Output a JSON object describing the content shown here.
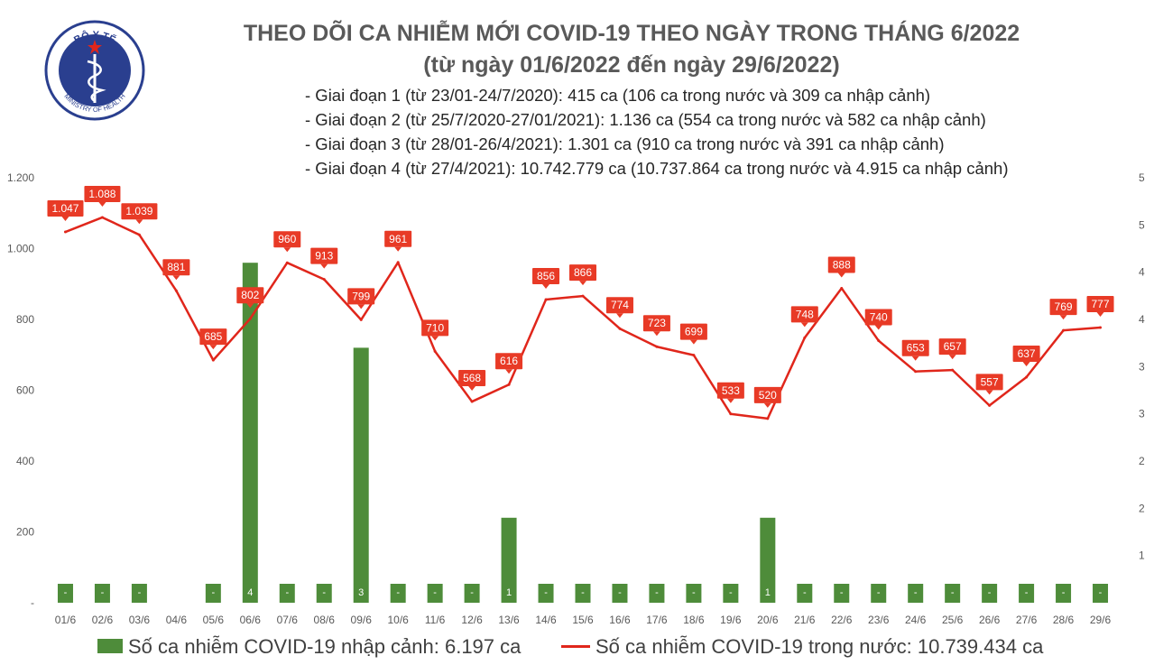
{
  "logo": {
    "top_text": "BỘ Y TẾ",
    "bottom_text": "MINISTRY OF HEALTH"
  },
  "title": {
    "line1": "THEO DÕI CA NHIỄM MỚI COVID-19 THEO NGÀY TRONG THÁNG 6/2022",
    "line2": "(từ ngày 01/6/2022 đến ngày 29/6/2022)"
  },
  "notes": [
    "- Giai đoạn 1 (từ 23/01-24/7/2020): 415 ca (106 ca trong nước và 309 ca nhập cảnh)",
    "- Giai đoạn 2 (từ 25/7/2020-27/01/2021): 1.136 ca (554 ca trong nước và 582 ca nhập cảnh)",
    "- Giai đoạn 3 (từ 28/01-26/4/2021): 1.301 ca (910 ca trong nước và 391 ca nhập cảnh)",
    "- Giai đoạn 4 (từ 27/4/2021): 10.742.779 ca (10.737.864 ca trong nước và 4.915 ca nhập cảnh)"
  ],
  "colors": {
    "bar": "#4e8c3a",
    "line": "#e0261b",
    "label_bg": "#e83a26",
    "axis_text": "#595959"
  },
  "legend": {
    "bar": "Số ca nhiễm COVID-19 nhập cảnh: 6.197 ca",
    "line": "Số ca nhiễm COVID-19 trong nước: 10.739.434 ca"
  },
  "chart_data": {
    "type": "bar+line",
    "categories": [
      "01/6",
      "02/6",
      "03/6",
      "04/6",
      "05/6",
      "06/6",
      "07/6",
      "08/6",
      "09/6",
      "10/6",
      "11/6",
      "12/6",
      "13/6",
      "14/6",
      "15/6",
      "16/6",
      "17/6",
      "18/6",
      "19/6",
      "20/6",
      "21/6",
      "22/6",
      "23/6",
      "24/6",
      "25/6",
      "26/6",
      "27/6",
      "28/6",
      "29/6"
    ],
    "series": [
      {
        "name": "Số ca nhiễm COVID-19 nhập cảnh: 6.197 ca",
        "type": "bar",
        "axis": "right",
        "values": [
          0,
          0,
          0,
          null,
          0,
          4,
          0,
          0,
          3,
          0,
          0,
          0,
          1,
          0,
          0,
          0,
          0,
          0,
          0,
          1,
          0,
          0,
          0,
          0,
          0,
          0,
          0,
          0,
          0
        ],
        "labels": [
          "-",
          "-",
          "-",
          "",
          "-",
          "4",
          "-",
          "-",
          "3",
          "-",
          "-",
          "-",
          "1",
          "-",
          "-",
          "-",
          "-",
          "-",
          "-",
          "1",
          "-",
          "-",
          "-",
          "-",
          "-",
          "-",
          "-",
          "-",
          "-"
        ]
      },
      {
        "name": "Số ca nhiễm COVID-19 trong nước: 10.739.434 ca",
        "type": "line",
        "axis": "left",
        "values": [
          1047,
          1088,
          1039,
          881,
          685,
          802,
          960,
          913,
          799,
          961,
          710,
          568,
          616,
          856,
          866,
          774,
          723,
          699,
          533,
          520,
          748,
          888,
          740,
          653,
          657,
          557,
          637,
          769,
          777
        ],
        "labels": [
          "1.047",
          "1.088",
          "1.039",
          "881",
          "685",
          "802",
          "960",
          "913",
          "799",
          "961",
          "710",
          "568",
          "616",
          "856",
          "866",
          "774",
          "723",
          "699",
          "533",
          "520",
          "748",
          "888",
          "740",
          "653",
          "657",
          "557",
          "637",
          "769",
          "777"
        ]
      }
    ],
    "y_left": {
      "range": [
        0,
        1200
      ],
      "ticks": [
        "-",
        "200",
        "400",
        "600",
        "800",
        "1.000",
        "1.200"
      ]
    },
    "y_right": {
      "range": [
        0,
        5
      ],
      "ticks": [
        "",
        "1",
        "2",
        "2",
        "3",
        "3",
        "4",
        "4",
        "5",
        "5"
      ]
    },
    "legend_position": "bottom"
  }
}
